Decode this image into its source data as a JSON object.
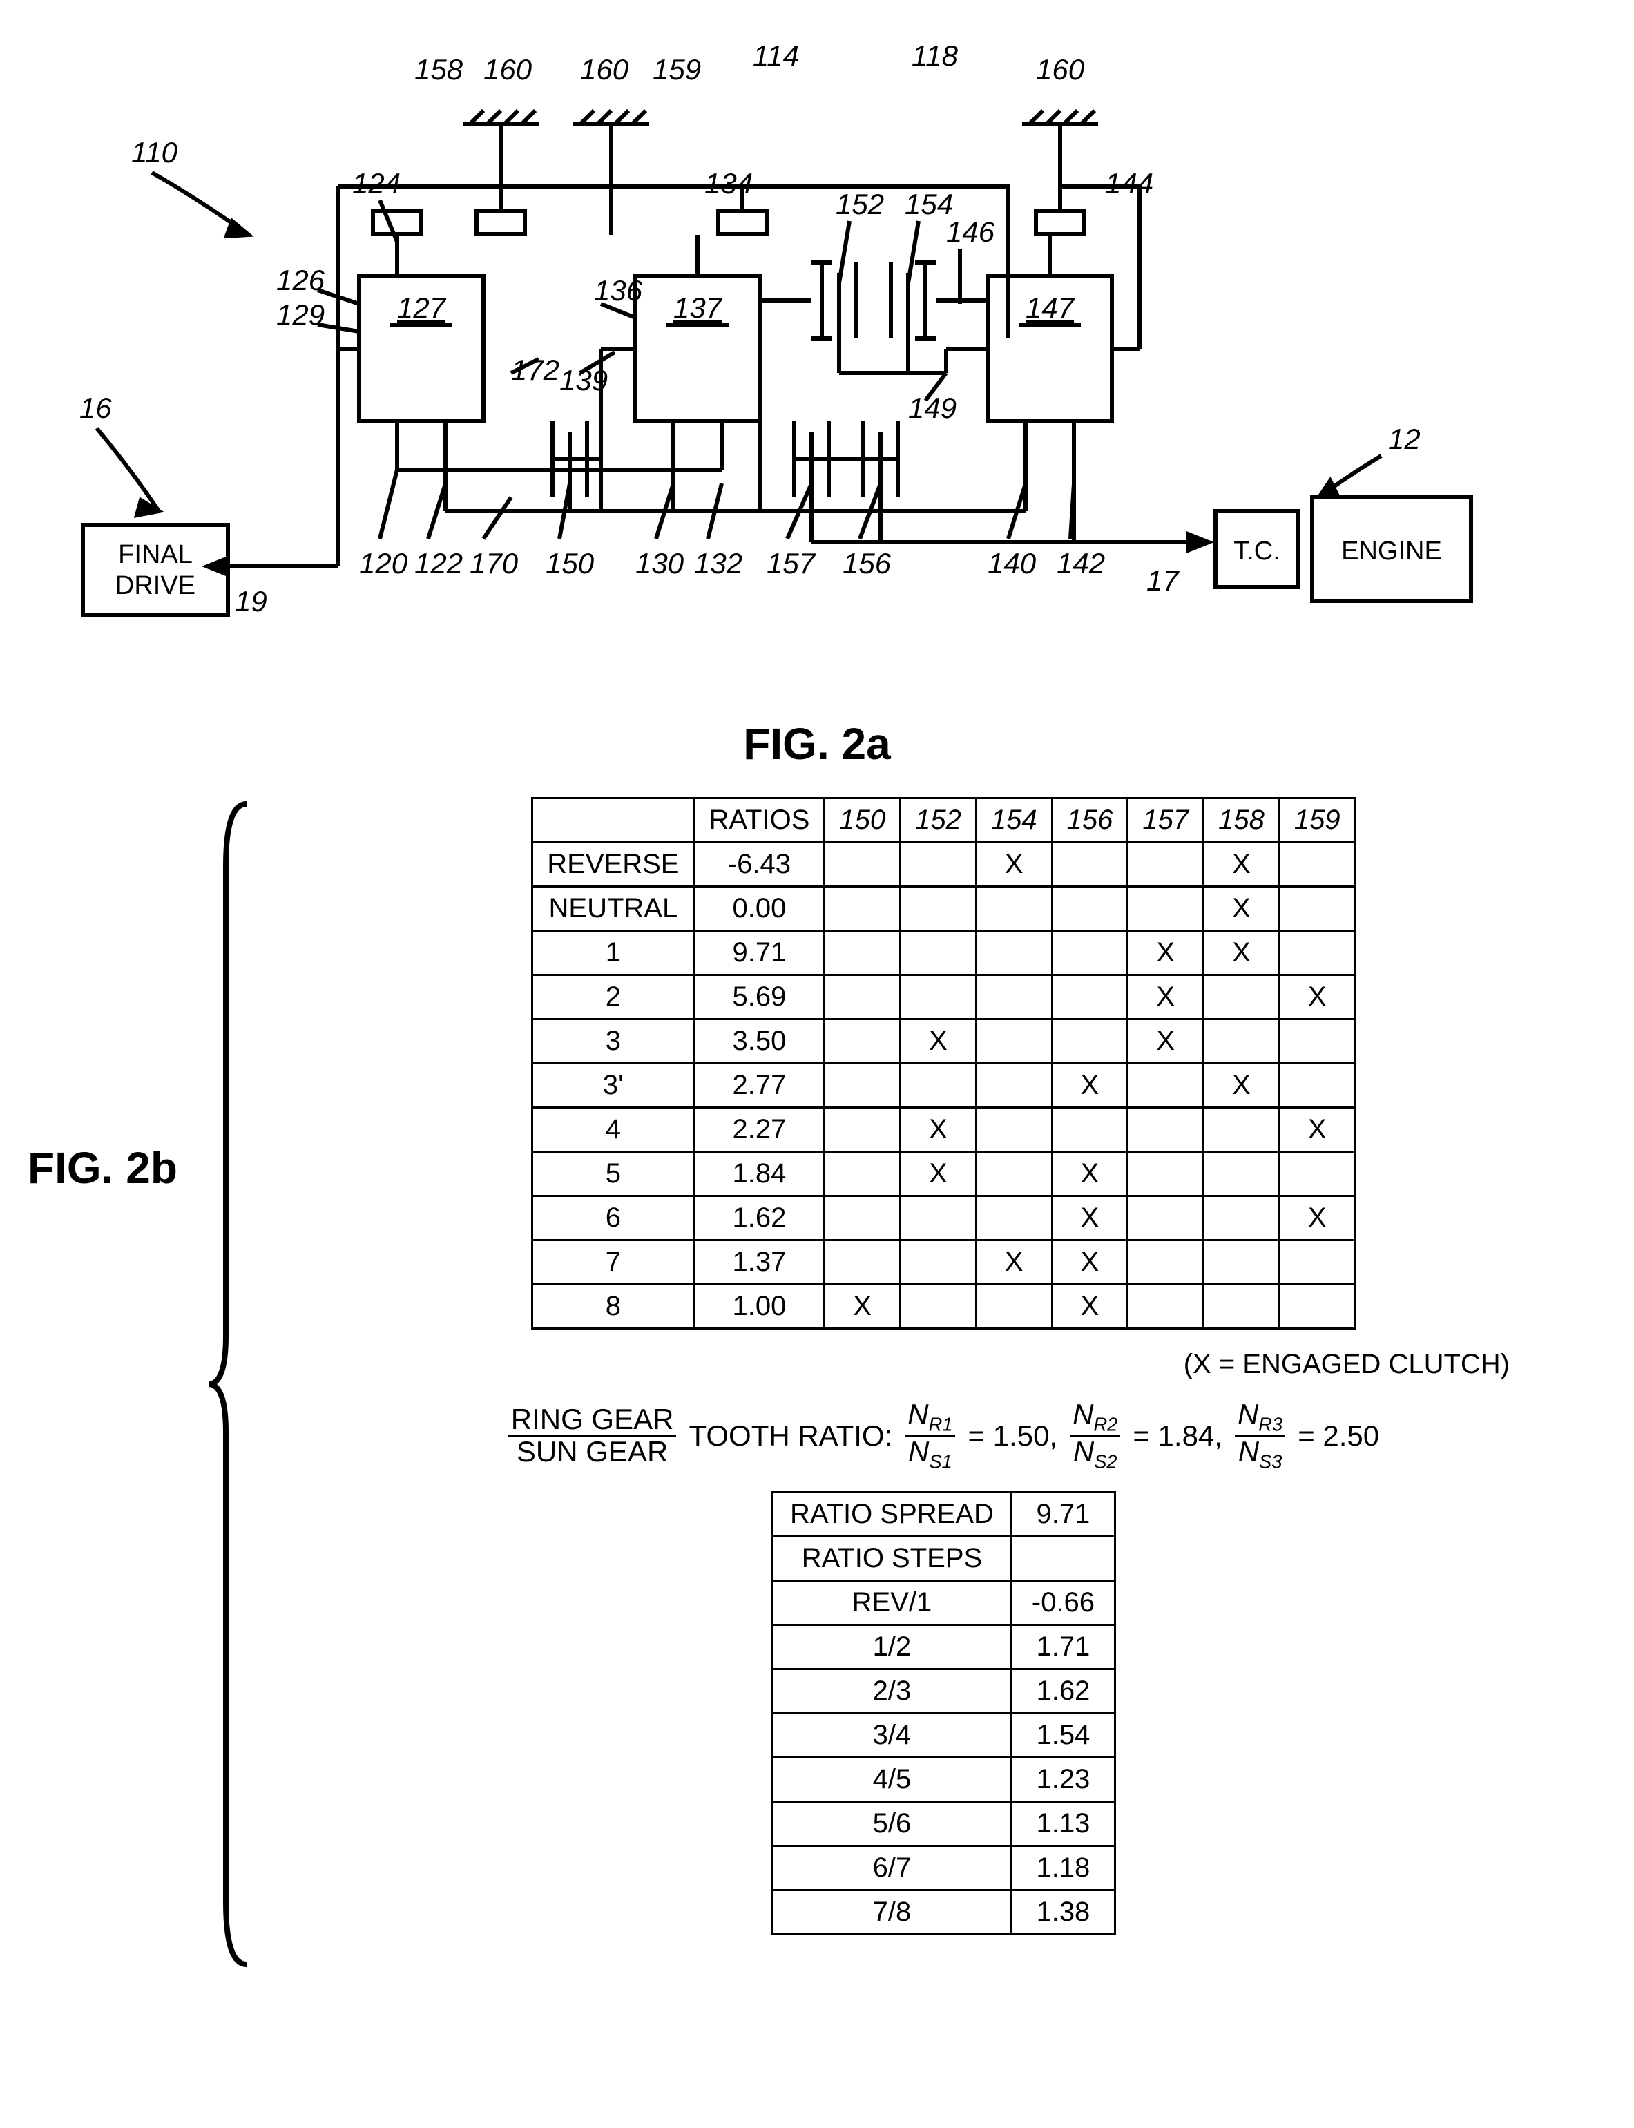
{
  "fig2a": {
    "label": "FIG. 2a",
    "finalDrive": "FINAL\nDRIVE",
    "tc": "T.C.",
    "engine": "ENGINE",
    "refs": {
      "r12": "12",
      "r16": "16",
      "r17": "17",
      "r19": "19",
      "r110": "110",
      "r114": "114",
      "r118": "118",
      "r120": "120",
      "r122": "122",
      "r124": "124",
      "r126": "126",
      "r127": "127",
      "r129": "129",
      "r130": "130",
      "r132": "132",
      "r134": "134",
      "r136": "136",
      "r137": "137",
      "r139": "139",
      "r140": "140",
      "r142": "142",
      "r144": "144",
      "r146": "146",
      "r147": "147",
      "r149": "149",
      "r150": "150",
      "r152": "152",
      "r154": "154",
      "r156": "156",
      "r157": "157",
      "r158": "158",
      "r159": "159",
      "r160a": "160",
      "r160b": "160",
      "r160c": "160",
      "r170": "170",
      "r172": "172"
    }
  },
  "fig2b": {
    "label": "FIG. 2b",
    "legend": "(X = ENGAGED CLUTCH)",
    "mainTable": {
      "headers": [
        "",
        "RATIOS",
        "150",
        "152",
        "154",
        "156",
        "157",
        "158",
        "159"
      ],
      "rows": [
        [
          "REVERSE",
          "-6.43",
          "",
          "",
          "X",
          "",
          "",
          "X",
          ""
        ],
        [
          "NEUTRAL",
          "0.00",
          "",
          "",
          "",
          "",
          "",
          "X",
          ""
        ],
        [
          "1",
          "9.71",
          "",
          "",
          "",
          "",
          "X",
          "X",
          ""
        ],
        [
          "2",
          "5.69",
          "",
          "",
          "",
          "",
          "X",
          "",
          "X"
        ],
        [
          "3",
          "3.50",
          "",
          "X",
          "",
          "",
          "X",
          "",
          ""
        ],
        [
          "3'",
          "2.77",
          "",
          "",
          "",
          "X",
          "",
          "X",
          ""
        ],
        [
          "4",
          "2.27",
          "",
          "X",
          "",
          "",
          "",
          "",
          "X"
        ],
        [
          "5",
          "1.84",
          "",
          "X",
          "",
          "X",
          "",
          "",
          ""
        ],
        [
          "6",
          "1.62",
          "",
          "",
          "",
          "X",
          "",
          "",
          "X"
        ],
        [
          "7",
          "1.37",
          "",
          "",
          "X",
          "X",
          "",
          "",
          ""
        ],
        [
          "8",
          "1.00",
          "X",
          "",
          "",
          "X",
          "",
          "",
          ""
        ]
      ]
    },
    "toothRatio": {
      "prefixTop": "RING GEAR",
      "prefixBot": "SUN GEAR",
      "label": "TOOTH RATIO:",
      "r1num": "N",
      "r1numSub": "R1",
      "r1den": "N",
      "r1denSub": "S1",
      "r1val": "= 1.50,",
      "r2num": "N",
      "r2numSub": "R2",
      "r2den": "N",
      "r2denSub": "S2",
      "r2val": "= 1.84,",
      "r3num": "N",
      "r3numSub": "R3",
      "r3den": "N",
      "r3denSub": "S3",
      "r3val": "= 2.50"
    },
    "stepsTable": {
      "rows": [
        [
          "RATIO SPREAD",
          "9.71"
        ],
        [
          "RATIO STEPS",
          ""
        ],
        [
          "REV/1",
          "-0.66"
        ],
        [
          "1/2",
          "1.71"
        ],
        [
          "2/3",
          "1.62"
        ],
        [
          "3/4",
          "1.54"
        ],
        [
          "4/5",
          "1.23"
        ],
        [
          "5/6",
          "1.13"
        ],
        [
          "6/7",
          "1.18"
        ],
        [
          "7/8",
          "1.38"
        ]
      ]
    }
  }
}
